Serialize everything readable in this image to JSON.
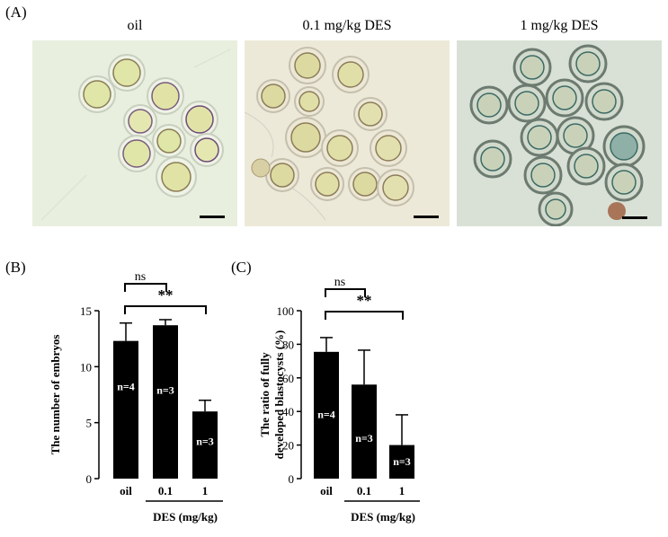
{
  "figure": {
    "panel_labels": {
      "a": "(A)",
      "b": "(B)",
      "c": "(C)"
    },
    "images": [
      {
        "title": "oil",
        "background": "#e9efde"
      },
      {
        "title": "0.1 mg/kg DES",
        "background": "#ece9d8"
      },
      {
        "title": "1 mg/kg DES",
        "background": "#d9e1d6"
      }
    ]
  },
  "chart_data": [
    {
      "type": "bar",
      "panel": "(B)",
      "categories": [
        "oil",
        "0.1",
        "1"
      ],
      "values": [
        12.3,
        13.7,
        6.0
      ],
      "errors": [
        1.6,
        0.5,
        1.0
      ],
      "n_labels": [
        "n=4",
        "n=3",
        "n=3"
      ],
      "xlabel": "DES (mg/kg)",
      "ylabel": "The number of embryos",
      "ylim": [
        0,
        15
      ],
      "yticks": [
        "0",
        "5",
        "10",
        "15"
      ],
      "significance": [
        {
          "from": "oil",
          "to": "0.1",
          "label": "ns"
        },
        {
          "from": "oil",
          "to": "1",
          "label": "**"
        }
      ],
      "bar_color": "#000000"
    },
    {
      "type": "bar",
      "panel": "(C)",
      "categories": [
        "oil",
        "0.1",
        "1"
      ],
      "values": [
        75.5,
        56.0,
        20.0
      ],
      "errors": [
        8.5,
        20.5,
        18.0
      ],
      "n_labels": [
        "n=4",
        "n=3",
        "n=3"
      ],
      "xlabel": "DES (mg/kg)",
      "ylabel": "The ratio of fully developed blastocysts (%)",
      "ylim": [
        0,
        100
      ],
      "yticks": [
        "0",
        "20",
        "40",
        "60",
        "80",
        "100"
      ],
      "significance": [
        {
          "from": "oil",
          "to": "0.1",
          "label": "ns"
        },
        {
          "from": "oil",
          "to": "1",
          "label": "**"
        }
      ],
      "bar_color": "#000000"
    }
  ]
}
